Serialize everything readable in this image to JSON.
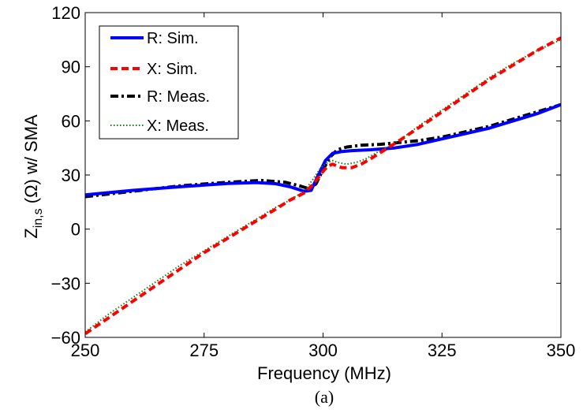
{
  "chart_data": {
    "type": "line",
    "xlabel": "Frequency (MHz)",
    "ylabel": {
      "main": "Z",
      "subscript": "in,s",
      "rest": " (Ω) w/ SMA"
    },
    "caption": "(a)",
    "xlim": [
      250,
      350
    ],
    "ylim": [
      -60,
      120
    ],
    "xticks": [
      250,
      275,
      300,
      325,
      350
    ],
    "yticks": [
      -60,
      -30,
      0,
      30,
      60,
      90,
      120
    ],
    "ytick_labels": [
      "−60",
      "−30",
      "0",
      "30",
      "60",
      "90",
      "120"
    ],
    "grid": false,
    "legend_position": "top-left",
    "series": [
      {
        "name": "R: Sim.",
        "color": "#0000ff",
        "style": "solid",
        "x": [
          250,
          260,
          270,
          280,
          286,
          290,
          293,
          296,
          297.5,
          299,
          300.5,
          302,
          304,
          306,
          310,
          315,
          320,
          325,
          330,
          335,
          340,
          345,
          350
        ],
        "y": [
          19,
          21.5,
          23.5,
          25.3,
          25.8,
          25.2,
          23.5,
          21,
          21.5,
          30,
          38,
          42,
          43,
          43.5,
          44,
          45,
          47,
          50,
          53,
          56,
          60,
          64,
          69
        ]
      },
      {
        "name": "X: Sim.",
        "color": "#ff0000",
        "style": "dashed",
        "x": [
          250,
          255,
          260,
          265,
          270,
          275,
          280,
          285,
          290,
          293,
          296,
          298,
          300,
          301,
          302,
          303,
          304,
          306,
          308,
          310,
          313,
          316,
          320,
          325,
          330,
          335,
          340,
          345,
          350
        ],
        "y": [
          -58,
          -49,
          -40,
          -31,
          -22,
          -13,
          -5,
          3,
          11,
          16,
          20,
          25,
          32,
          35,
          36,
          35,
          34,
          34,
          36,
          39,
          44,
          49,
          56,
          65,
          74,
          83,
          91,
          99,
          106
        ]
      },
      {
        "name": "R: Meas.",
        "color": "#000000",
        "style": "dashdot",
        "x": [
          250,
          260,
          270,
          280,
          287,
          292,
          295,
          297,
          298.5,
          300,
          301.5,
          303,
          305,
          308,
          312,
          316,
          320,
          325,
          330,
          335,
          340,
          345,
          350
        ],
        "y": [
          18,
          21,
          24,
          26,
          27,
          26,
          24,
          22.5,
          25,
          33,
          40,
          44,
          45.5,
          46.5,
          47,
          48,
          49,
          51,
          54,
          57,
          61,
          65,
          69
        ]
      },
      {
        "name": "X: Meas.",
        "color": "#1a7a1a",
        "style": "dotted",
        "x": [
          250,
          255,
          260,
          265,
          270,
          275,
          280,
          285,
          290,
          293,
          296,
          298,
          299.5,
          301,
          302,
          303,
          305,
          307,
          309,
          311,
          314,
          317,
          320,
          325,
          330,
          335,
          340,
          345,
          350
        ],
        "y": [
          -57,
          -47,
          -38,
          -29,
          -20,
          -12,
          -4,
          4,
          12,
          16,
          21,
          28,
          34,
          37,
          38,
          37,
          36,
          37,
          39,
          42,
          46,
          51,
          57,
          66,
          75,
          84,
          92,
          99,
          105
        ]
      }
    ]
  }
}
